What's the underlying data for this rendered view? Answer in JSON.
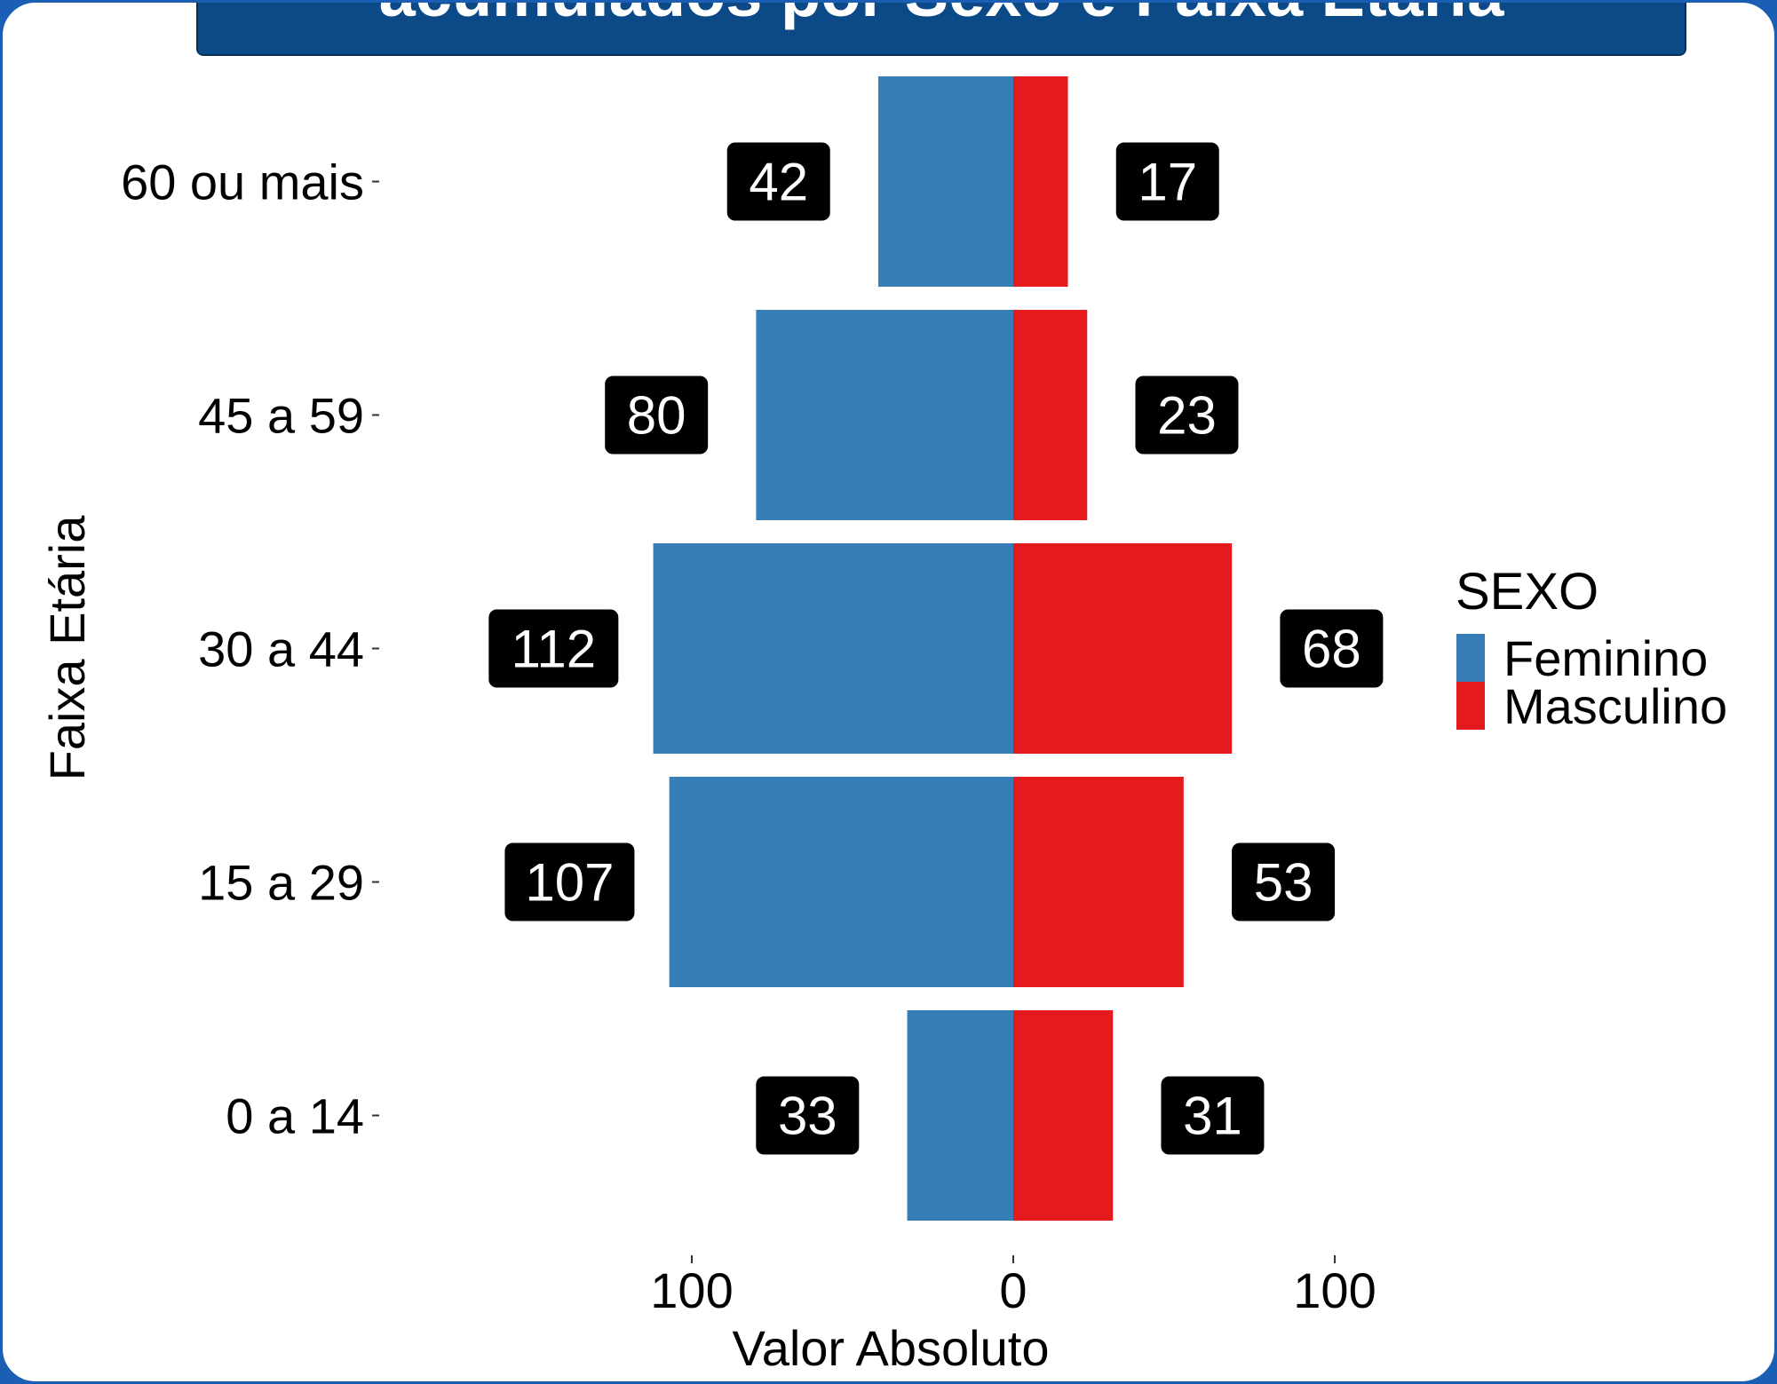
{
  "title": "acumulados por Sexo e Faixa Etária",
  "colors": {
    "feminino": "#377eb8",
    "masculino": "#e41a1c",
    "label_bg": "#000000",
    "label_text": "#ffffff",
    "banner": "#0b4a86"
  },
  "chart_data": {
    "type": "bar",
    "orientation": "horizontal-population-pyramid",
    "categories": [
      "60 ou mais",
      "45 a 59",
      "30 a 44",
      "15 a 29",
      "0 a 14"
    ],
    "series": [
      {
        "name": "Feminino",
        "values": [
          42,
          80,
          112,
          107,
          33
        ]
      },
      {
        "name": "Masculino",
        "values": [
          17,
          23,
          68,
          53,
          31
        ]
      }
    ],
    "xlabel": "Valor Absoluto",
    "ylabel": "Faixa Etária",
    "x_ticks": [
      {
        "value": -100,
        "label": "100"
      },
      {
        "value": 0,
        "label": "0"
      },
      {
        "value": 100,
        "label": "100"
      }
    ],
    "legend_title": "SEXO",
    "legend_position": "right",
    "grid": false
  }
}
